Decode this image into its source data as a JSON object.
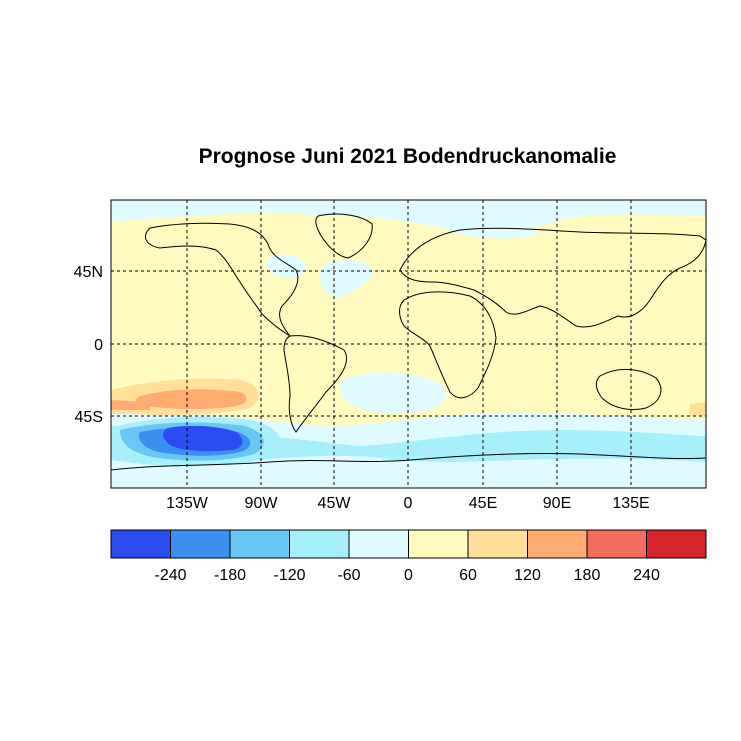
{
  "title": "Prognose Juni 2021 Bodendruckanomalie",
  "map": {
    "projection": "cylindrical-equidistant",
    "lon_range": [
      -180,
      180
    ],
    "lat_range": [
      -90,
      90
    ],
    "grid": "dashed",
    "lat_ticks": [
      {
        "value": 45,
        "label": "45N"
      },
      {
        "value": 0,
        "label": "0"
      },
      {
        "value": -45,
        "label": "45S"
      }
    ],
    "lon_ticks": [
      {
        "value": -135,
        "label": "135W"
      },
      {
        "value": -90,
        "label": "90W"
      },
      {
        "value": -45,
        "label": "45W"
      },
      {
        "value": 0,
        "label": "0"
      },
      {
        "value": 45,
        "label": "45E"
      },
      {
        "value": 90,
        "label": "90E"
      },
      {
        "value": 135,
        "label": "135E"
      }
    ]
  },
  "colorbar": {
    "colors": [
      "#2a4cf0",
      "#3b8ff0",
      "#68c8f3",
      "#a8effc",
      "#e0fbff",
      "#fffbbf",
      "#ffdf99",
      "#ffac73",
      "#f56d5c",
      "#d8262e"
    ],
    "tick_values": [
      -240,
      -180,
      -120,
      -60,
      0,
      60,
      120,
      180,
      240
    ],
    "tick_labels": [
      "-240",
      "-180",
      "-120",
      "-60",
      "0",
      "60",
      "120",
      "180",
      "240"
    ]
  }
}
